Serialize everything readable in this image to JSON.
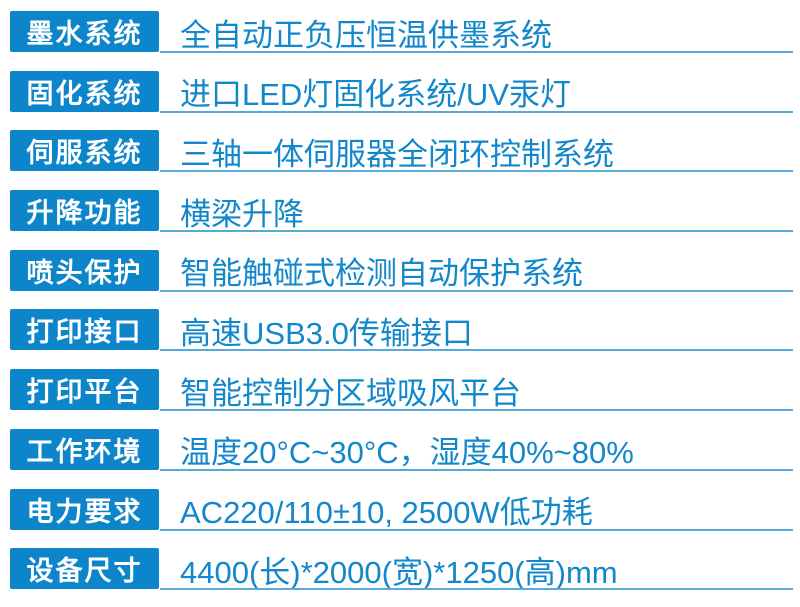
{
  "colors": {
    "label_bg": "#0d85ca",
    "label_text": "#ffffff",
    "value_text": "#1287cb",
    "underline": "#55aadb",
    "page_bg": "#ffffff"
  },
  "spec_table": {
    "rows": [
      {
        "label": "墨水系统",
        "value": "全自动正负压恒温供墨系统"
      },
      {
        "label": "固化系统",
        "value": "进口LED灯固化系统/UV汞灯"
      },
      {
        "label": "伺服系统",
        "value": "三轴一体伺服器全闭环控制系统"
      },
      {
        "label": "升降功能",
        "value": "横梁升降"
      },
      {
        "label": "喷头保护",
        "value": "智能触碰式检测自动保护系统"
      },
      {
        "label": "打印接口",
        "value": "高速USB3.0传输接口"
      },
      {
        "label": "打印平台",
        "value": "智能控制分区域吸风平台"
      },
      {
        "label": "工作环境",
        "value": "温度20°C~30°C，湿度40%~80%"
      },
      {
        "label": "电力要求",
        "value": "AC220/110±10, 2500W低功耗"
      },
      {
        "label": "设备尺寸",
        "value": "4400(长)*2000(宽)*1250(高)mm"
      }
    ]
  }
}
